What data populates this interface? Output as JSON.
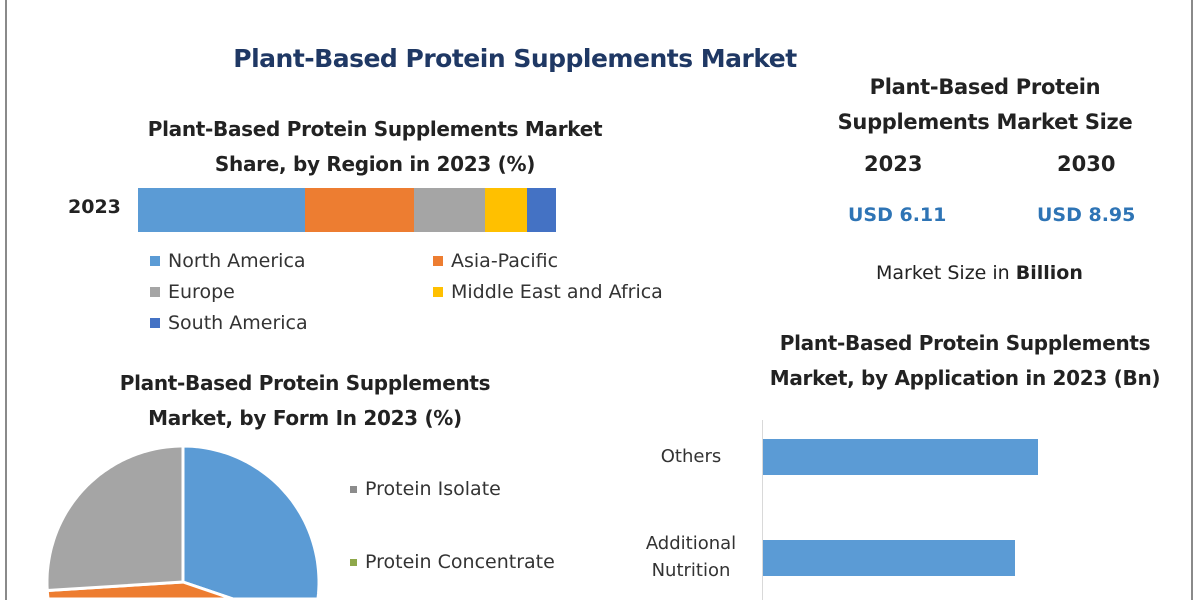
{
  "title": "Plant-Based Protein Supplements Market",
  "market_size": {
    "title_line1": "Plant-Based Protein",
    "title_line2": "Supplements Market Size",
    "years": [
      "2023",
      "2030"
    ],
    "values": [
      "USD 6.11",
      "USD 8.95"
    ],
    "note_prefix": "Market Size in ",
    "note_bold": "Billion"
  },
  "chart_data": [
    {
      "type": "bar",
      "orientation": "horizontal-stacked",
      "title_line1": "Plant-Based Protein Supplements Market",
      "title_line2": "Share, by Region in 2023 (%)",
      "categories": [
        "2023"
      ],
      "series": [
        {
          "name": "North America",
          "values": [
            40
          ],
          "color": "#5b9bd5"
        },
        {
          "name": "Asia-Pacific",
          "values": [
            26
          ],
          "color": "#ed7d31"
        },
        {
          "name": "Europe",
          "values": [
            17
          ],
          "color": "#a5a5a5"
        },
        {
          "name": "Middle East and Africa",
          "values": [
            10
          ],
          "color": "#ffc000"
        },
        {
          "name": "South America",
          "values": [
            7
          ],
          "color": "#4472c4"
        }
      ],
      "legend": "bottom"
    },
    {
      "type": "pie",
      "title_line1": "Plant-Based Protein Supplements",
      "title_line2": "Market, by Form In 2023 (%)",
      "slices": [
        {
          "name": "Protein Isolate",
          "value": 44,
          "color": "#5b9bd5",
          "legend_color": "#8c8c8c"
        },
        {
          "name": "Protein Concentrate",
          "value": 30,
          "color": "#ed7d31",
          "legend_color": "#8ea84a"
        },
        {
          "name": "",
          "value": 26,
          "color": "#a5a5a5"
        }
      ],
      "legend": "right"
    },
    {
      "type": "bar",
      "orientation": "horizontal",
      "title_line1": "Plant-Based Protein Supplements",
      "title_line2": "Market, by Application in 2023 (Bn)",
      "categories": [
        "Others",
        "Additional Nutrition"
      ],
      "category_lines": [
        [
          "Others"
        ],
        [
          "Additional",
          "Nutrition"
        ]
      ],
      "values": [
        2.75,
        2.52
      ],
      "color": "#5b9bd5"
    }
  ]
}
